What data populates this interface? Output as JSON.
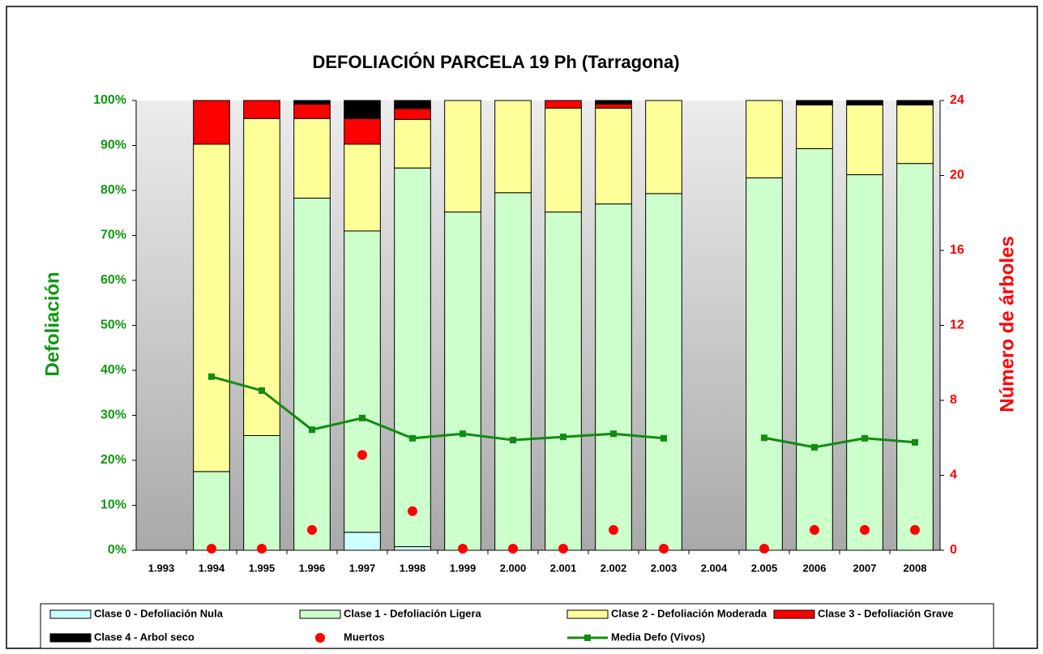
{
  "chart_data": {
    "type": "bar",
    "stacked": true,
    "title": "DEFOLIACIÓN PARCELA 19 Ph (Tarragona)",
    "y_label": "Defoliación",
    "y2_label": "Número de árboles",
    "categories": [
      "1.993",
      "1.994",
      "1.995",
      "1.996",
      "1.997",
      "1.998",
      "1.999",
      "2.000",
      "2.001",
      "2.002",
      "2.003",
      "2.004",
      "2.005",
      "2006",
      "2007",
      "2008"
    ],
    "series": [
      {
        "name": "Clase 0 - Defoliación Nula",
        "type": "bar",
        "color": "#ccffff",
        "values": [
          null,
          0,
          0,
          0,
          4,
          0.8,
          0,
          0,
          0,
          0,
          0,
          null,
          0,
          0,
          0,
          0
        ]
      },
      {
        "name": "Clase 1 - Defoliación Ligera",
        "type": "bar",
        "color": "#ccffcc",
        "values": [
          null,
          17.5,
          25.5,
          78.3,
          67,
          84.2,
          75.2,
          79.5,
          75.2,
          77,
          79.3,
          null,
          82.8,
          89.3,
          83.5,
          86
        ]
      },
      {
        "name": "Clase 2 - Defoliación Moderada",
        "type": "bar",
        "color": "#ffff99",
        "values": [
          null,
          72.8,
          70.5,
          17.7,
          19.3,
          10.8,
          24.8,
          20.5,
          23.1,
          21.3,
          20.7,
          null,
          17.2,
          9.7,
          15.5,
          13
        ]
      },
      {
        "name": "Clase 3 - Defoliación Grave",
        "type": "bar",
        "color": "#ff0000",
        "values": [
          null,
          9.7,
          4,
          3.2,
          5.7,
          2.4,
          0,
          0,
          1.7,
          0.9,
          0,
          null,
          0,
          0,
          0,
          0
        ]
      },
      {
        "name": "Clase 4 - Arbol seco",
        "type": "bar",
        "color": "#000000",
        "values": [
          null,
          0,
          0,
          0.8,
          4,
          1.8,
          0,
          0,
          0,
          0.8,
          0,
          null,
          0,
          1,
          1,
          1
        ]
      },
      {
        "name": "Muertos",
        "type": "scatter",
        "axis": "y2",
        "color": "#ff0000",
        "values": [
          null,
          0,
          0,
          1,
          5,
          2,
          0,
          0,
          0,
          1,
          0,
          null,
          0,
          1,
          1,
          1
        ]
      },
      {
        "name": "Media Defo (Vivos)",
        "type": "line",
        "color": "#138a13",
        "values": [
          null,
          38.6,
          35.5,
          26.8,
          29.4,
          24.9,
          25.9,
          24.5,
          25.2,
          25.9,
          24.9,
          null,
          25,
          22.9,
          24.9,
          24
        ]
      }
    ],
    "ylim": [
      0,
      100
    ],
    "yticks": [
      {
        "value": 0,
        "label": "0%"
      },
      {
        "value": 10,
        "label": "10%"
      },
      {
        "value": 20,
        "label": "20%"
      },
      {
        "value": 30,
        "label": "30%"
      },
      {
        "value": 40,
        "label": "40%"
      },
      {
        "value": 50,
        "label": "50%"
      },
      {
        "value": 60,
        "label": "60%"
      },
      {
        "value": 70,
        "label": "70%"
      },
      {
        "value": 80,
        "label": "80%"
      },
      {
        "value": 90,
        "label": "90%"
      },
      {
        "value": 100,
        "label": "100%"
      }
    ],
    "y2lim": [
      0,
      24
    ],
    "y2ticks": [
      0,
      4,
      8,
      12,
      16,
      20,
      24
    ],
    "legend": "bottom"
  }
}
